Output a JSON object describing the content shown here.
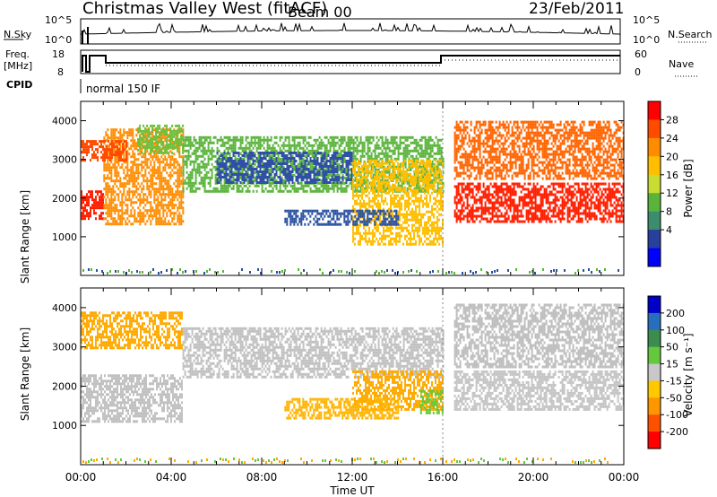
{
  "header": {
    "title": "Christmas Valley West (fitACF)",
    "beam": "Beam 00",
    "date": "23/Feb/2011"
  },
  "top_panels": {
    "nsky": {
      "label": "N.Sky",
      "ticks_left": [
        "10^5",
        "10^0"
      ],
      "ticks_right": [
        "10^5",
        "10^0"
      ],
      "right_label": "N.Search"
    },
    "freq": {
      "label_line1": "Freq.",
      "label_line2": "[MHz]",
      "ticks_left": [
        "18",
        "8"
      ],
      "ticks_right": [
        "60",
        "0"
      ],
      "right_label": "Nave"
    },
    "cpid": {
      "label": "CPID",
      "text": "normal 150 IF"
    }
  },
  "chart_data": [
    {
      "type": "heatmap",
      "name": "power",
      "ylabel": "Slant Range [km]",
      "ylim": [
        0,
        4500
      ],
      "yticks": [
        "1000",
        "2000",
        "3000",
        "4000"
      ],
      "xlim": [
        0,
        24
      ],
      "xticks": [
        "00:00",
        "04:00",
        "08:00",
        "12:00",
        "16:00",
        "20:00",
        "00:00"
      ],
      "colorbar": {
        "label": "Power [dB]",
        "ticks": [
          "28",
          "24",
          "20",
          "16",
          "12",
          "8",
          "4"
        ],
        "colors": [
          "#ff0000",
          "#ff4a00",
          "#ff8c00",
          "#ffbe00",
          "#c8dc32",
          "#5ab43c",
          "#3c8c6e",
          "#28409c",
          "#0000ff"
        ]
      },
      "bands": [
        {
          "start_h": 0.0,
          "end_h": 1.0,
          "r0": 1500,
          "r1": 2200,
          "color": "#ff1e00"
        },
        {
          "start_h": 1.0,
          "end_h": 4.5,
          "r0": 1300,
          "r1": 3800,
          "color": "#ff8c00"
        },
        {
          "start_h": 0.0,
          "end_h": 2.0,
          "r0": 3000,
          "r1": 3500,
          "color": "#ff4a00"
        },
        {
          "start_h": 2.5,
          "end_h": 4.5,
          "r0": 3200,
          "r1": 3900,
          "color": "#6cc03c"
        },
        {
          "start_h": 4.5,
          "end_h": 16.0,
          "r0": 2200,
          "r1": 3600,
          "color": "#5ab43c"
        },
        {
          "start_h": 6.0,
          "end_h": 12.0,
          "r0": 2400,
          "r1": 3200,
          "color": "#3050a8"
        },
        {
          "start_h": 12.0,
          "end_h": 16.0,
          "r0": 800,
          "r1": 3000,
          "color": "#ffbe00"
        },
        {
          "start_h": 9.0,
          "end_h": 14.0,
          "r0": 1350,
          "r1": 1700,
          "color": "#2850a0"
        },
        {
          "start_h": 16.5,
          "end_h": 24.0,
          "r0": 1400,
          "r1": 2400,
          "color": "#ff1e00"
        },
        {
          "start_h": 16.5,
          "end_h": 24.0,
          "r0": 2500,
          "r1": 4000,
          "color": "#ff6400"
        }
      ]
    },
    {
      "type": "heatmap",
      "name": "velocity",
      "ylabel": "Slant Range [km]",
      "ylim": [
        0,
        4500
      ],
      "yticks": [
        "1000",
        "2000",
        "3000",
        "4000"
      ],
      "xlim": [
        0,
        24
      ],
      "xticks": [
        "00:00",
        "04:00",
        "08:00",
        "12:00",
        "16:00",
        "20:00",
        "00:00"
      ],
      "xlabel": "Time UT",
      "colorbar": {
        "label": "Velocity [m s⁻¹]",
        "ticks": [
          "200",
          "100",
          "50",
          "15",
          "-15",
          "-50",
          "-100",
          "-200"
        ],
        "colors": [
          "#0000c8",
          "#286ebe",
          "#3c8c50",
          "#64c83c",
          "#c8c8c8",
          "#ffc800",
          "#ff9600",
          "#ff5000",
          "#ff0000"
        ]
      },
      "bands": [
        {
          "start_h": 0.0,
          "end_h": 4.5,
          "r0": 1100,
          "r1": 2300,
          "color": "#c0c0c0"
        },
        {
          "start_h": 0.0,
          "end_h": 4.5,
          "r0": 3000,
          "r1": 3900,
          "color": "#ffaa00"
        },
        {
          "start_h": 4.5,
          "end_h": 16.0,
          "r0": 2200,
          "r1": 3500,
          "color": "#c0c0c0"
        },
        {
          "start_h": 12.0,
          "end_h": 16.0,
          "r0": 1400,
          "r1": 2400,
          "color": "#ffaa00"
        },
        {
          "start_h": 9.0,
          "end_h": 14.0,
          "r0": 1200,
          "r1": 1700,
          "color": "#ffb400"
        },
        {
          "start_h": 15.0,
          "end_h": 16.0,
          "r0": 1300,
          "r1": 1900,
          "color": "#64c83c"
        },
        {
          "start_h": 16.5,
          "end_h": 24.0,
          "r0": 1400,
          "r1": 2400,
          "color": "#c4c4c4"
        },
        {
          "start_h": 16.5,
          "end_h": 24.0,
          "r0": 2500,
          "r1": 4100,
          "color": "#bebebe"
        }
      ]
    }
  ]
}
